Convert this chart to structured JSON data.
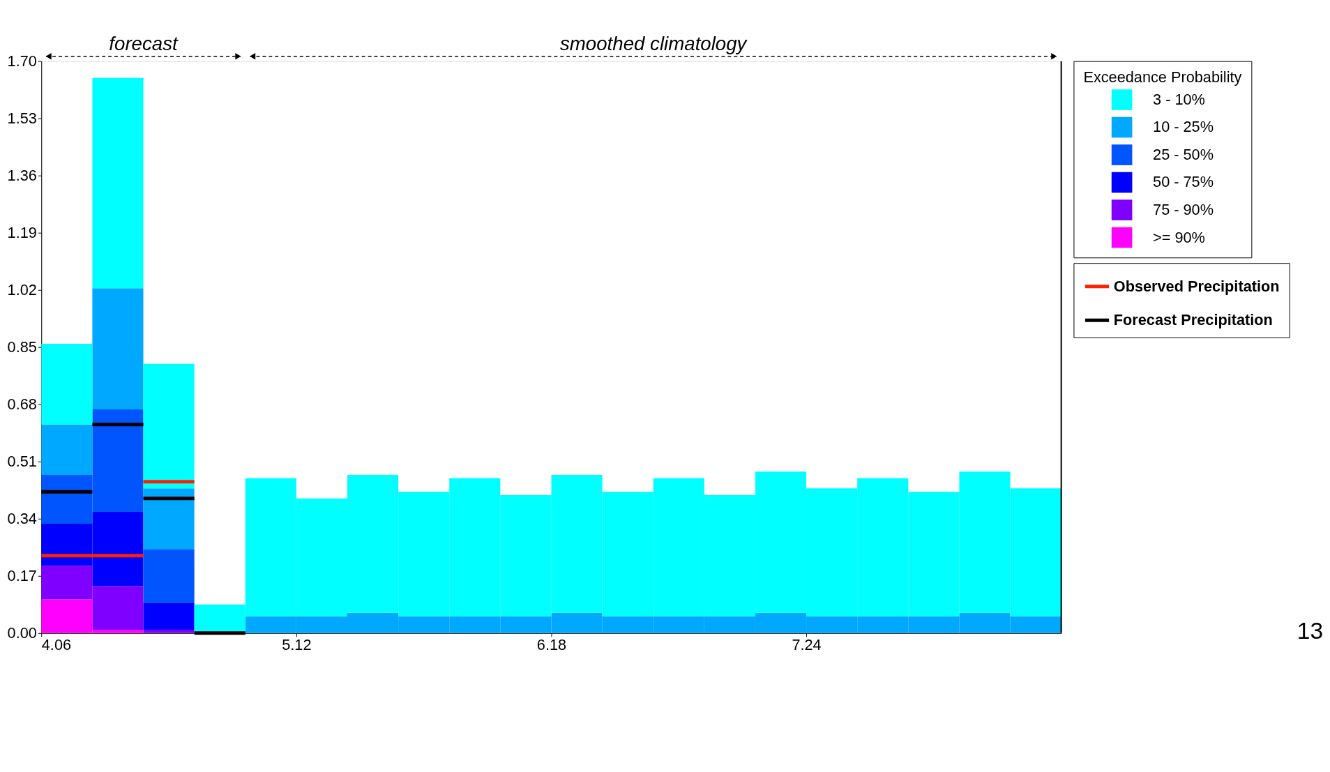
{
  "chart_data": {
    "type": "bar",
    "stacked": true,
    "x": [
      4.166,
      4.378,
      4.59,
      4.802,
      5.014,
      5.226,
      5.438,
      5.65,
      5.862,
      6.074,
      6.286,
      6.498,
      6.71,
      6.922,
      7.134,
      7.346,
      7.558,
      7.77,
      7.982,
      8.194
    ],
    "xlim": [
      4.06,
      8.3
    ],
    "xticks": [
      4.06,
      5.12,
      6.18,
      7.24
    ],
    "ylim": [
      0,
      1.7
    ],
    "yticks": [
      {
        "value": 0,
        "label": "0.00"
      },
      0.17,
      0.34,
      0.51,
      0.68,
      0.85,
      1.02,
      1.19,
      1.36,
      1.53,
      {
        "value": 1.7,
        "label": "1.70"
      }
    ],
    "legend_title": "Exceedance Probability",
    "legend": "right",
    "grid": false,
    "series": [
      {
        "name": ">= 90%",
        "color": "#ff00ff",
        "values": [
          0.1,
          0.01,
          0,
          0,
          0,
          0,
          0,
          0,
          0,
          0,
          0,
          0,
          0,
          0,
          0,
          0,
          0,
          0,
          0,
          0
        ]
      },
      {
        "name": "75 - 90%",
        "color": "#8000ff",
        "values": [
          0.1,
          0.13,
          0.01,
          0,
          0,
          0,
          0,
          0,
          0,
          0,
          0,
          0,
          0,
          0,
          0,
          0,
          0,
          0,
          0,
          0
        ]
      },
      {
        "name": "50 - 75%",
        "color": "#0000ff",
        "values": [
          0.125,
          0.22,
          0.08,
          0,
          0,
          0,
          0,
          0,
          0,
          0,
          0,
          0,
          0,
          0,
          0,
          0,
          0,
          0,
          0,
          0
        ]
      },
      {
        "name": "25 - 50%",
        "color": "#0055ff",
        "values": [
          0.145,
          0.305,
          0.16,
          0,
          0,
          0,
          0,
          0,
          0,
          0,
          0,
          0,
          0,
          0,
          0,
          0,
          0,
          0,
          0,
          0
        ]
      },
      {
        "name": "10 - 25%",
        "color": "#00a8ff",
        "values": [
          0.15,
          0.36,
          0.18,
          0,
          0.05,
          0.05,
          0.06,
          0.05,
          0.05,
          0.05,
          0.06,
          0.05,
          0.05,
          0.05,
          0.06,
          0.05,
          0.05,
          0.05,
          0.06,
          0.05
        ]
      },
      {
        "name": "3 - 10%",
        "color": "#00ffff",
        "values": [
          0.24,
          0.625,
          0.37,
          0.085,
          0.41,
          0.35,
          0.41,
          0.37,
          0.41,
          0.36,
          0.41,
          0.37,
          0.41,
          0.36,
          0.42,
          0.38,
          0.41,
          0.37,
          0.42,
          0.38
        ]
      },
      {
        "name": "Observed Precipitation",
        "type": "line",
        "color": "#ff2000",
        "x": [
          4.06,
          4.484,
          null,
          4.484,
          4.696
        ],
        "values": [
          0.23,
          0.23,
          null,
          0.45,
          0.45
        ]
      },
      {
        "name": "Forecast Precipitation",
        "type": "line",
        "color": "#000000",
        "x": [
          4.06,
          4.272,
          null,
          4.272,
          4.484,
          null,
          4.484,
          4.696,
          null,
          4.696,
          4.908
        ],
        "values": [
          0.42,
          0.42,
          null,
          0.62,
          0.62,
          null,
          0.4,
          0.4,
          null,
          0.0,
          0.0
        ]
      }
    ],
    "annotations": [
      "forecast",
      "smoothed climatology",
      "13"
    ]
  }
}
